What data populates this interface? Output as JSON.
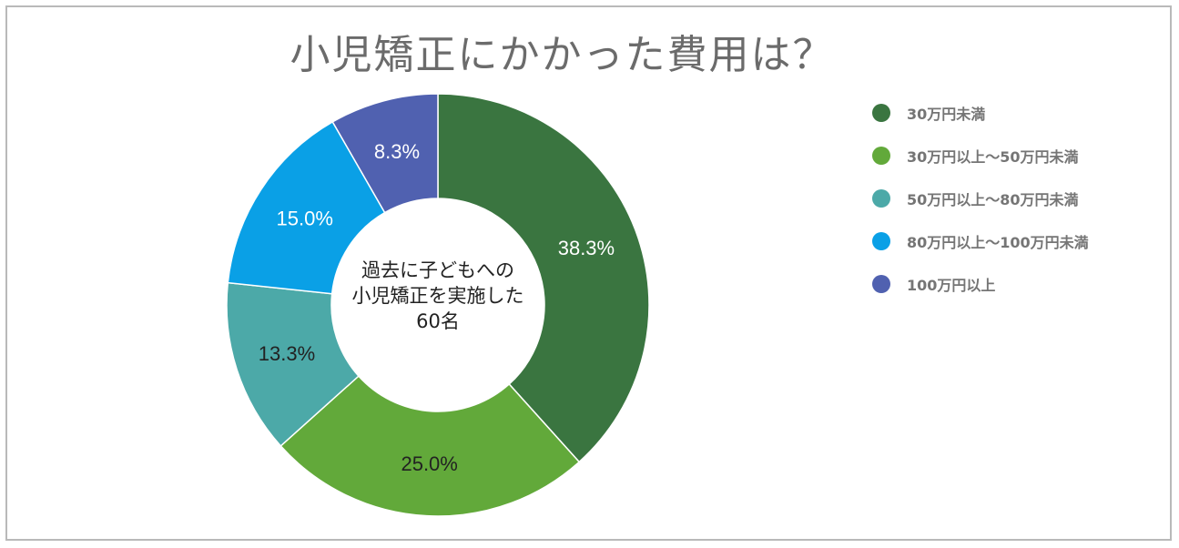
{
  "chart_data": {
    "type": "pie",
    "title": "小児矯正にかかった費用は？",
    "center_label": [
      "過去に子どもへの",
      "小児矯正を実施した",
      "60名"
    ],
    "categories": [
      "30万円未満",
      "30万円以上～50万円未満",
      "50万円以上～80万円未満",
      "80万円以上～100万円未満",
      "100万円以上"
    ],
    "values": [
      38.3,
      25.0,
      13.3,
      15.0,
      8.3
    ],
    "labels": [
      "38.3%",
      "25.0%",
      "13.3%",
      "15.0%",
      "8.3%"
    ],
    "colors": [
      "#3a7540",
      "#62a93a",
      "#4ca9a8",
      "#0aa0e6",
      "#5061b0"
    ],
    "label_colors": [
      "#ffffff",
      "#222222",
      "#222222",
      "#ffffff",
      "#ffffff"
    ],
    "legend_position": "right",
    "donut": true
  }
}
